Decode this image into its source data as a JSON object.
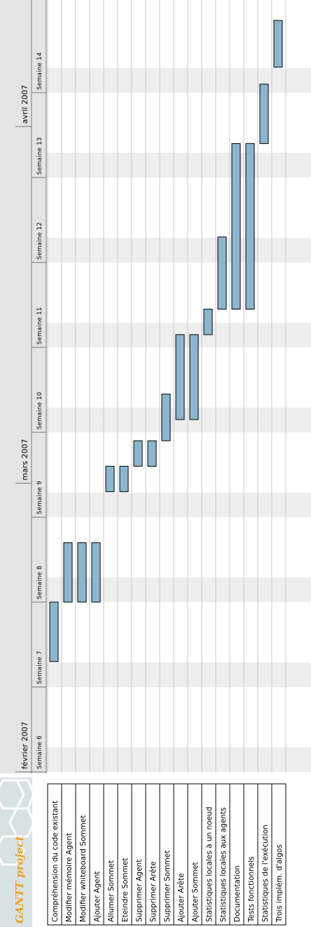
{
  "app": {
    "logo_text": "GANTT project"
  },
  "chart_data": {
    "type": "gantt",
    "months": [
      {
        "label": "février 2007",
        "start_week": 6
      },
      {
        "label": "mars 2007",
        "start_week": 9.4
      },
      {
        "label": "avril 2007",
        "start_week": 13.6
      }
    ],
    "weeks": [
      {
        "number": 6,
        "label": "Semaine 6"
      },
      {
        "number": 7,
        "label": "Semaine 7"
      },
      {
        "number": 8,
        "label": "Semaine 8"
      },
      {
        "number": 9,
        "label": "Semaine 9"
      },
      {
        "number": 10,
        "label": "Semaine 10"
      },
      {
        "number": 11,
        "label": "Semaine 11"
      },
      {
        "number": 12,
        "label": "Semaine 12"
      },
      {
        "number": 13,
        "label": "Semaine 13"
      },
      {
        "number": 14,
        "label": "Semaine 14"
      }
    ],
    "tasks": [
      {
        "name": "Compréhension du code existant",
        "start_week": 7.3,
        "end_week": 8.0
      },
      {
        "name": "Modifier mémoire Agent",
        "start_week": 8.0,
        "end_week": 8.7
      },
      {
        "name": "Modifier whiteboard Sommet",
        "start_week": 8.0,
        "end_week": 8.7
      },
      {
        "name": "Ajouter Agent",
        "start_week": 8.0,
        "end_week": 8.7
      },
      {
        "name": "Allumer Sommet",
        "start_week": 9.3,
        "end_week": 9.6
      },
      {
        "name": "Eteindre Sommet",
        "start_week": 9.3,
        "end_week": 9.6
      },
      {
        "name": "Supprimer Agent",
        "start_week": 9.6,
        "end_week": 9.9
      },
      {
        "name": "Supprimer Arête",
        "start_week": 9.6,
        "end_week": 9.9
      },
      {
        "name": "Supprimer Sommet",
        "start_week": 9.9,
        "end_week": 10.45
      },
      {
        "name": "Ajouter Arête",
        "start_week": 10.15,
        "end_week": 11.15
      },
      {
        "name": "Ajouter Sommet",
        "start_week": 10.15,
        "end_week": 11.15
      },
      {
        "name": "Statistiques locales à un noeud",
        "start_week": 11.15,
        "end_week": 11.45
      },
      {
        "name": "Statistiques locales aux agents",
        "start_week": 11.45,
        "end_week": 12.3
      },
      {
        "name": "Documentation",
        "start_week": 11.45,
        "end_week": 13.4
      },
      {
        "name": "Tests fonctionnels",
        "start_week": 11.45,
        "end_week": 13.4
      },
      {
        "name": "Statistiques de l'exécution",
        "start_week": 13.4,
        "end_week": 14.1
      },
      {
        "name": "Trois implém. d'algos",
        "start_week": 14.3,
        "end_week": 14.85
      }
    ],
    "colors": {
      "bar_fill": "#8cb6ce",
      "bar_stroke": "#000000",
      "band": "#eeeeee",
      "grid": "#c8c8c8"
    }
  }
}
